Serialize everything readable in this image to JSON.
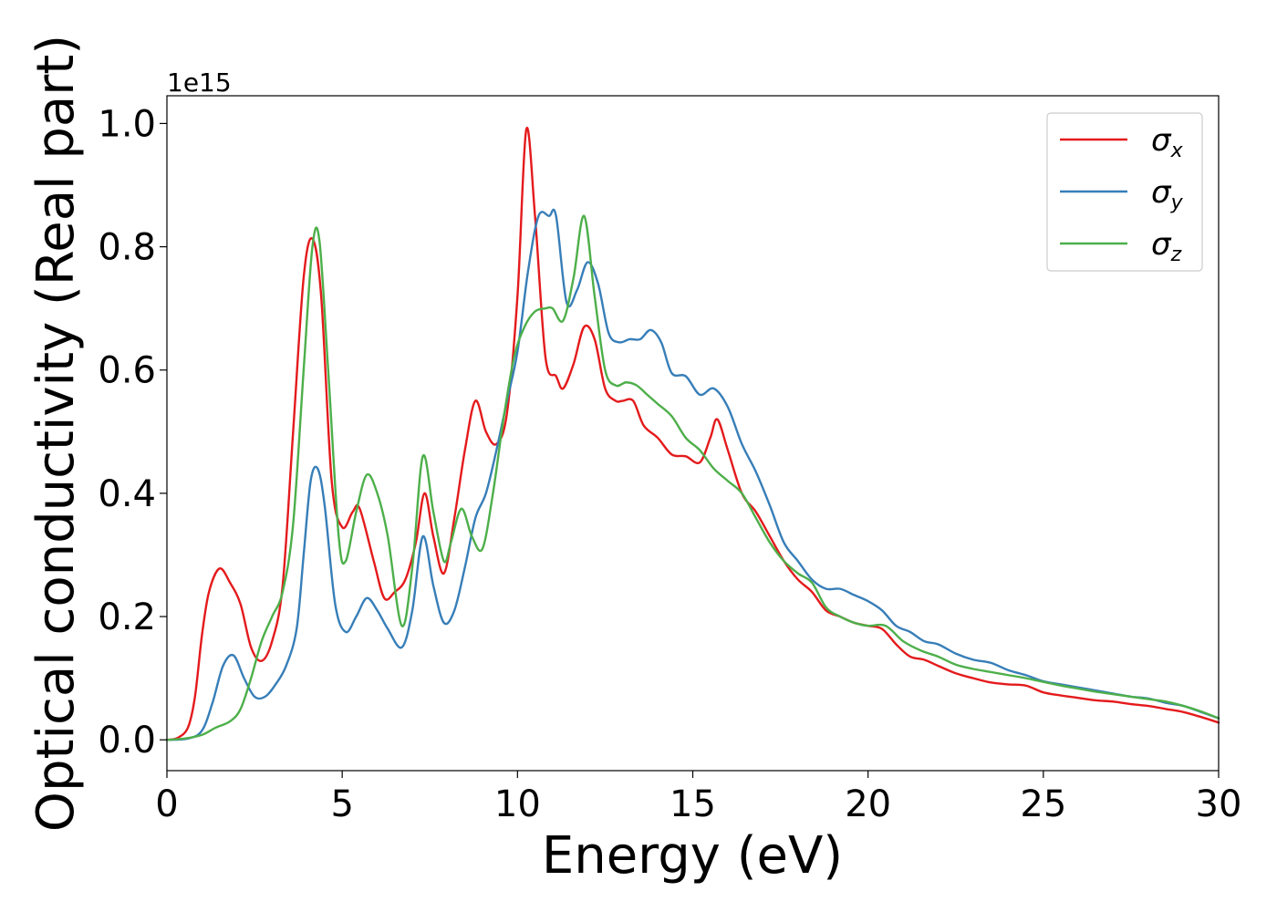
{
  "chart_data": {
    "type": "line",
    "title": "",
    "xlabel": "Energy (eV)",
    "ylabel": "Optical conductivity (Real part)",
    "y_offset_label": "1e15",
    "xlim": [
      0,
      30
    ],
    "ylim": [
      -0.05,
      1.045
    ],
    "xticks": [
      0,
      5,
      10,
      15,
      20,
      25,
      30
    ],
    "xtick_labels": [
      "0",
      "5",
      "10",
      "15",
      "20",
      "25",
      "30"
    ],
    "yticks": [
      0.0,
      0.2,
      0.4,
      0.6,
      0.8,
      1.0
    ],
    "ytick_labels": [
      "0.0",
      "0.2",
      "0.4",
      "0.6",
      "0.8",
      "1.0"
    ],
    "grid": false,
    "legend_position": "top-right",
    "series": [
      {
        "name": "σx",
        "symbol": "σ",
        "subscript": "x",
        "color": "#e41a1c",
        "points": [
          [
            0,
            0.0
          ],
          [
            0.3,
            0.003
          ],
          [
            0.6,
            0.02
          ],
          [
            0.8,
            0.07
          ],
          [
            1.0,
            0.17
          ],
          [
            1.2,
            0.24
          ],
          [
            1.5,
            0.278
          ],
          [
            1.8,
            0.255
          ],
          [
            2.1,
            0.22
          ],
          [
            2.4,
            0.15
          ],
          [
            2.7,
            0.128
          ],
          [
            3.0,
            0.16
          ],
          [
            3.3,
            0.25
          ],
          [
            3.6,
            0.5
          ],
          [
            3.9,
            0.75
          ],
          [
            4.15,
            0.813
          ],
          [
            4.4,
            0.72
          ],
          [
            4.7,
            0.42
          ],
          [
            5.0,
            0.345
          ],
          [
            5.3,
            0.37
          ],
          [
            5.5,
            0.375
          ],
          [
            5.9,
            0.29
          ],
          [
            6.2,
            0.23
          ],
          [
            6.5,
            0.24
          ],
          [
            6.8,
            0.26
          ],
          [
            7.1,
            0.32
          ],
          [
            7.35,
            0.4
          ],
          [
            7.6,
            0.33
          ],
          [
            7.9,
            0.27
          ],
          [
            8.2,
            0.36
          ],
          [
            8.5,
            0.47
          ],
          [
            8.8,
            0.55
          ],
          [
            9.1,
            0.5
          ],
          [
            9.4,
            0.48
          ],
          [
            9.7,
            0.53
          ],
          [
            10.0,
            0.72
          ],
          [
            10.25,
            0.99
          ],
          [
            10.5,
            0.85
          ],
          [
            10.8,
            0.62
          ],
          [
            11.1,
            0.59
          ],
          [
            11.3,
            0.57
          ],
          [
            11.6,
            0.61
          ],
          [
            11.9,
            0.67
          ],
          [
            12.2,
            0.65
          ],
          [
            12.5,
            0.57
          ],
          [
            12.8,
            0.55
          ],
          [
            13.0,
            0.55
          ],
          [
            13.3,
            0.55
          ],
          [
            13.6,
            0.51
          ],
          [
            14.0,
            0.49
          ],
          [
            14.4,
            0.463
          ],
          [
            14.8,
            0.46
          ],
          [
            15.2,
            0.45
          ],
          [
            15.5,
            0.49
          ],
          [
            15.7,
            0.52
          ],
          [
            16.0,
            0.47
          ],
          [
            16.4,
            0.4
          ],
          [
            16.8,
            0.37
          ],
          [
            17.2,
            0.33
          ],
          [
            17.6,
            0.29
          ],
          [
            18.0,
            0.26
          ],
          [
            18.4,
            0.24
          ],
          [
            18.8,
            0.21
          ],
          [
            19.2,
            0.2
          ],
          [
            19.6,
            0.19
          ],
          [
            20.0,
            0.185
          ],
          [
            20.4,
            0.18
          ],
          [
            20.8,
            0.155
          ],
          [
            21.2,
            0.135
          ],
          [
            21.6,
            0.13
          ],
          [
            22.0,
            0.12
          ],
          [
            22.5,
            0.108
          ],
          [
            23.0,
            0.1
          ],
          [
            23.5,
            0.093
          ],
          [
            24.0,
            0.09
          ],
          [
            24.5,
            0.088
          ],
          [
            25.0,
            0.077
          ],
          [
            25.5,
            0.072
          ],
          [
            26.0,
            0.068
          ],
          [
            26.5,
            0.064
          ],
          [
            27.0,
            0.062
          ],
          [
            27.5,
            0.058
          ],
          [
            28.0,
            0.055
          ],
          [
            28.5,
            0.05
          ],
          [
            29.0,
            0.045
          ],
          [
            29.5,
            0.037
          ],
          [
            30.0,
            0.028
          ]
        ]
      },
      {
        "name": "σy",
        "symbol": "σ",
        "subscript": "y",
        "color": "#377eb8",
        "points": [
          [
            0,
            0.0
          ],
          [
            0.6,
            0.002
          ],
          [
            1.0,
            0.015
          ],
          [
            1.3,
            0.06
          ],
          [
            1.6,
            0.12
          ],
          [
            1.9,
            0.137
          ],
          [
            2.2,
            0.1
          ],
          [
            2.5,
            0.07
          ],
          [
            2.8,
            0.07
          ],
          [
            3.1,
            0.09
          ],
          [
            3.4,
            0.12
          ],
          [
            3.7,
            0.18
          ],
          [
            3.9,
            0.3
          ],
          [
            4.1,
            0.42
          ],
          [
            4.3,
            0.44
          ],
          [
            4.5,
            0.38
          ],
          [
            4.8,
            0.22
          ],
          [
            5.1,
            0.175
          ],
          [
            5.4,
            0.2
          ],
          [
            5.7,
            0.23
          ],
          [
            6.0,
            0.21
          ],
          [
            6.3,
            0.18
          ],
          [
            6.7,
            0.15
          ],
          [
            7.0,
            0.21
          ],
          [
            7.3,
            0.33
          ],
          [
            7.6,
            0.25
          ],
          [
            7.9,
            0.19
          ],
          [
            8.2,
            0.21
          ],
          [
            8.5,
            0.28
          ],
          [
            8.8,
            0.36
          ],
          [
            9.1,
            0.4
          ],
          [
            9.4,
            0.47
          ],
          [
            9.7,
            0.55
          ],
          [
            10.0,
            0.63
          ],
          [
            10.3,
            0.76
          ],
          [
            10.6,
            0.85
          ],
          [
            10.9,
            0.85
          ],
          [
            11.1,
            0.85
          ],
          [
            11.4,
            0.71
          ],
          [
            11.7,
            0.73
          ],
          [
            12.0,
            0.775
          ],
          [
            12.3,
            0.74
          ],
          [
            12.6,
            0.66
          ],
          [
            12.9,
            0.645
          ],
          [
            13.2,
            0.65
          ],
          [
            13.5,
            0.65
          ],
          [
            13.8,
            0.665
          ],
          [
            14.1,
            0.645
          ],
          [
            14.4,
            0.595
          ],
          [
            14.8,
            0.59
          ],
          [
            15.2,
            0.56
          ],
          [
            15.6,
            0.57
          ],
          [
            16.0,
            0.54
          ],
          [
            16.4,
            0.48
          ],
          [
            16.8,
            0.435
          ],
          [
            17.2,
            0.38
          ],
          [
            17.6,
            0.32
          ],
          [
            18.0,
            0.29
          ],
          [
            18.4,
            0.26
          ],
          [
            18.8,
            0.245
          ],
          [
            19.2,
            0.245
          ],
          [
            19.6,
            0.235
          ],
          [
            20.0,
            0.225
          ],
          [
            20.4,
            0.21
          ],
          [
            20.8,
            0.185
          ],
          [
            21.2,
            0.175
          ],
          [
            21.6,
            0.16
          ],
          [
            22.0,
            0.155
          ],
          [
            22.5,
            0.14
          ],
          [
            23.0,
            0.13
          ],
          [
            23.5,
            0.125
          ],
          [
            24.0,
            0.113
          ],
          [
            24.5,
            0.105
          ],
          [
            25.0,
            0.095
          ],
          [
            25.5,
            0.09
          ],
          [
            26.0,
            0.085
          ],
          [
            26.5,
            0.08
          ],
          [
            27.0,
            0.075
          ],
          [
            27.5,
            0.07
          ],
          [
            28.0,
            0.067
          ],
          [
            28.5,
            0.06
          ],
          [
            29.0,
            0.055
          ],
          [
            29.5,
            0.045
          ],
          [
            30.0,
            0.035
          ]
        ]
      },
      {
        "name": "σz",
        "symbol": "σ",
        "subscript": "z",
        "color": "#4daf4a",
        "points": [
          [
            0,
            0.0
          ],
          [
            0.5,
            0.002
          ],
          [
            1.0,
            0.008
          ],
          [
            1.4,
            0.02
          ],
          [
            1.8,
            0.03
          ],
          [
            2.1,
            0.05
          ],
          [
            2.4,
            0.1
          ],
          [
            2.7,
            0.16
          ],
          [
            3.0,
            0.2
          ],
          [
            3.3,
            0.24
          ],
          [
            3.6,
            0.35
          ],
          [
            3.9,
            0.6
          ],
          [
            4.15,
            0.8
          ],
          [
            4.35,
            0.81
          ],
          [
            4.6,
            0.6
          ],
          [
            4.9,
            0.33
          ],
          [
            5.1,
            0.29
          ],
          [
            5.4,
            0.37
          ],
          [
            5.7,
            0.43
          ],
          [
            6.0,
            0.4
          ],
          [
            6.3,
            0.33
          ],
          [
            6.7,
            0.185
          ],
          [
            7.0,
            0.28
          ],
          [
            7.3,
            0.46
          ],
          [
            7.6,
            0.37
          ],
          [
            7.9,
            0.29
          ],
          [
            8.1,
            0.32
          ],
          [
            8.4,
            0.375
          ],
          [
            8.7,
            0.33
          ],
          [
            9.0,
            0.31
          ],
          [
            9.3,
            0.4
          ],
          [
            9.6,
            0.52
          ],
          [
            9.9,
            0.62
          ],
          [
            10.2,
            0.67
          ],
          [
            10.5,
            0.695
          ],
          [
            10.8,
            0.7
          ],
          [
            11.0,
            0.7
          ],
          [
            11.3,
            0.68
          ],
          [
            11.6,
            0.75
          ],
          [
            11.9,
            0.85
          ],
          [
            12.2,
            0.72
          ],
          [
            12.5,
            0.6
          ],
          [
            12.8,
            0.575
          ],
          [
            13.1,
            0.58
          ],
          [
            13.4,
            0.575
          ],
          [
            13.7,
            0.56
          ],
          [
            14.0,
            0.545
          ],
          [
            14.4,
            0.525
          ],
          [
            14.8,
            0.49
          ],
          [
            15.2,
            0.47
          ],
          [
            15.6,
            0.44
          ],
          [
            16.0,
            0.42
          ],
          [
            16.4,
            0.4
          ],
          [
            16.8,
            0.36
          ],
          [
            17.2,
            0.32
          ],
          [
            17.6,
            0.29
          ],
          [
            18.0,
            0.27
          ],
          [
            18.4,
            0.255
          ],
          [
            18.8,
            0.215
          ],
          [
            19.2,
            0.2
          ],
          [
            19.6,
            0.19
          ],
          [
            20.0,
            0.185
          ],
          [
            20.5,
            0.185
          ],
          [
            21.0,
            0.16
          ],
          [
            21.5,
            0.145
          ],
          [
            22.0,
            0.135
          ],
          [
            22.5,
            0.122
          ],
          [
            23.0,
            0.115
          ],
          [
            23.5,
            0.11
          ],
          [
            24.0,
            0.105
          ],
          [
            24.5,
            0.1
          ],
          [
            25.0,
            0.094
          ],
          [
            25.5,
            0.088
          ],
          [
            26.0,
            0.083
          ],
          [
            26.5,
            0.078
          ],
          [
            27.0,
            0.074
          ],
          [
            27.5,
            0.07
          ],
          [
            28.0,
            0.066
          ],
          [
            28.5,
            0.062
          ],
          [
            29.0,
            0.055
          ],
          [
            29.5,
            0.046
          ],
          [
            30.0,
            0.035
          ]
        ]
      }
    ]
  }
}
